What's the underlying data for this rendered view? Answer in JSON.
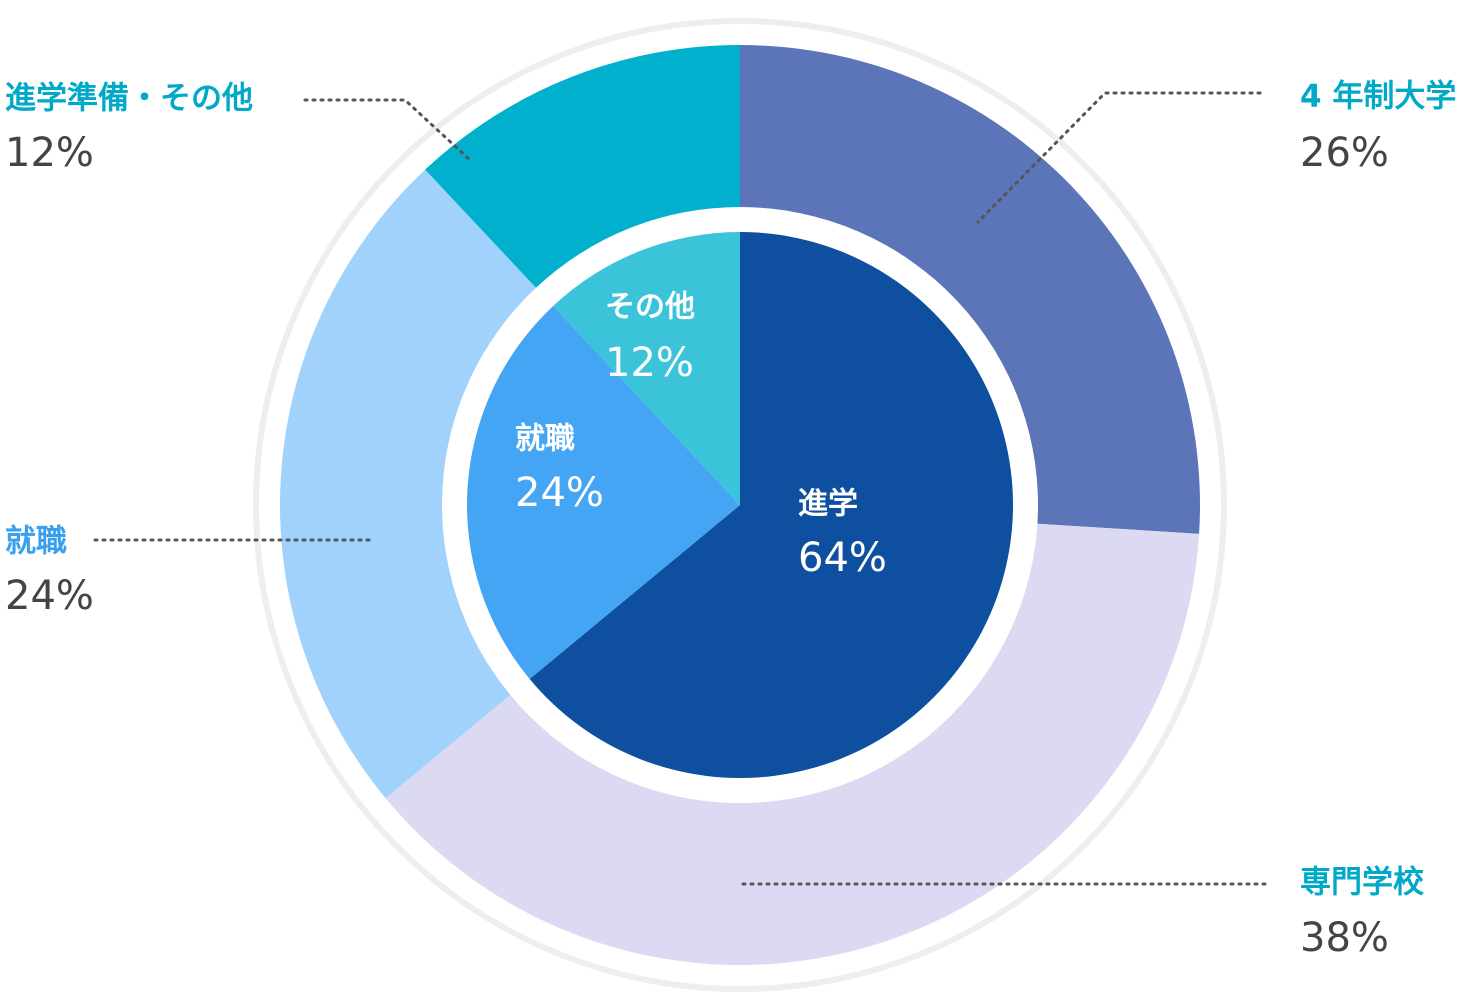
{
  "chart_data": [
    {
      "type": "pie",
      "categories": [
        "進学",
        "就職",
        "その他"
      ],
      "values": [
        64,
        24,
        12
      ],
      "value_labels": [
        "64%",
        "24%",
        "12%"
      ],
      "colors": [
        "#0f4fa0",
        "#43a5f3",
        "#3bc3d9"
      ]
    },
    {
      "type": "donut",
      "categories": [
        "4 年制大学",
        "専門学校",
        "就職",
        "進学準備・その他"
      ],
      "values": [
        26,
        38,
        24,
        12
      ],
      "value_labels": [
        "26%",
        "38%",
        "24%",
        "12%"
      ],
      "colors": [
        "#5b75b8",
        "#dcdaf2",
        "#a1d2fc",
        "#00b0cc"
      ],
      "label_colors": [
        "#00a9c8",
        "#00a9c8",
        "#3aa0ee",
        "#00a9c8"
      ]
    }
  ]
}
